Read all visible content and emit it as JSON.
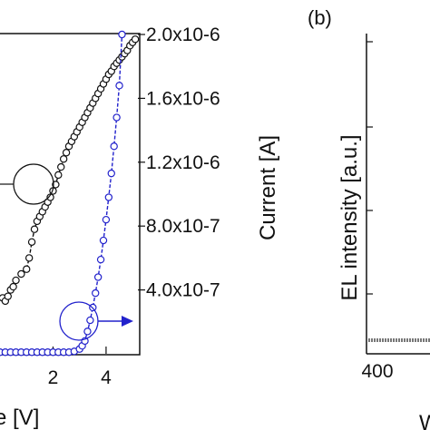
{
  "panel_b_label": "(b)",
  "chart_data": [
    {
      "type": "scatter",
      "panel": "a",
      "title": "",
      "xlabel": "e [V]",
      "ylabel_right": "Current [A]",
      "x_ticks": [
        "2",
        "4"
      ],
      "x_tick_values": [
        2,
        4
      ],
      "xlim": [
        0,
        5.2
      ],
      "y_ticks": [
        "4.0x10-7",
        "8.0x10-7",
        "1.2x10-6",
        "1.6x10-6",
        "2.0x10-6"
      ],
      "y_tick_values": [
        4e-07,
        8e-07,
        1.2e-06,
        1.6e-06,
        2e-06
      ],
      "grid": false,
      "series": [
        {
          "marker": "open-circle",
          "color": "#111111",
          "axis": "left",
          "x": [
            0.1,
            0.2,
            0.3,
            0.4,
            0.5,
            0.6,
            0.8,
            1.0,
            1.1,
            1.2,
            1.3,
            1.4,
            1.5,
            1.6,
            1.7,
            1.8,
            1.9,
            2.0,
            2.1,
            2.2,
            2.3,
            2.4,
            2.5,
            2.6,
            2.7,
            2.8,
            2.9,
            3.0,
            3.1,
            3.2,
            3.3,
            3.4,
            3.5,
            3.6,
            3.7,
            3.8,
            3.9,
            4.0,
            4.1,
            4.2,
            4.3,
            4.4,
            4.5,
            4.6,
            4.7,
            4.8,
            4.9,
            5.0,
            5.1
          ],
          "y": [
            3.5e-07,
            3.3e-07,
            3.6e-07,
            4e-07,
            4.2e-07,
            4.6e-07,
            5e-07,
            5.3e-07,
            6e-07,
            7e-07,
            7.8e-07,
            8.3e-07,
            8.6e-07,
            8.9e-07,
            9.2e-07,
            9.5e-07,
            9.8e-07,
            1.02e-06,
            1.06e-06,
            1.12e-06,
            1.17e-06,
            1.22e-06,
            1.26e-06,
            1.3e-06,
            1.33e-06,
            1.36e-06,
            1.39e-06,
            1.42e-06,
            1.45e-06,
            1.48e-06,
            1.51e-06,
            1.54e-06,
            1.57e-06,
            1.6e-06,
            1.63e-06,
            1.66e-06,
            1.69e-06,
            1.72e-06,
            1.75e-06,
            1.77e-06,
            1.8e-06,
            1.82e-06,
            1.84e-06,
            1.86e-06,
            1.88e-06,
            1.9e-06,
            1.93e-06,
            1.95e-06,
            1.97e-06
          ]
        },
        {
          "marker": "open-circle",
          "color": "#2222cc",
          "axis": "right",
          "x": [
            0.0,
            0.2,
            0.4,
            0.6,
            0.8,
            1.0,
            1.2,
            1.4,
            1.6,
            1.8,
            2.0,
            2.2,
            2.4,
            2.6,
            2.8,
            3.0,
            3.1,
            3.2,
            3.3,
            3.4,
            3.5,
            3.6,
            3.7,
            3.8,
            3.9,
            4.0,
            4.1,
            4.2,
            4.3,
            4.4,
            4.5,
            4.6
          ],
          "y": [
            1e-08,
            1e-08,
            1e-08,
            1e-08,
            1e-08,
            1e-08,
            1e-08,
            1e-08,
            1e-08,
            1e-08,
            1e-08,
            1e-08,
            1e-08,
            1e-08,
            1.5e-08,
            3e-08,
            5e-08,
            8e-08,
            1.4e-07,
            2.1e-07,
            2.9e-07,
            3.8e-07,
            4.8e-07,
            5.9e-07,
            7.1e-07,
            8.4e-07,
            9.8e-07,
            1.13e-06,
            1.3e-06,
            1.48e-06,
            1.68e-06,
            2e-06
          ]
        }
      ]
    },
    {
      "type": "line",
      "panel": "b",
      "title": "",
      "xlabel": "W",
      "ylabel": "EL intensity [a.u.]",
      "x_ticks": [
        "400"
      ],
      "grid": false
    }
  ]
}
